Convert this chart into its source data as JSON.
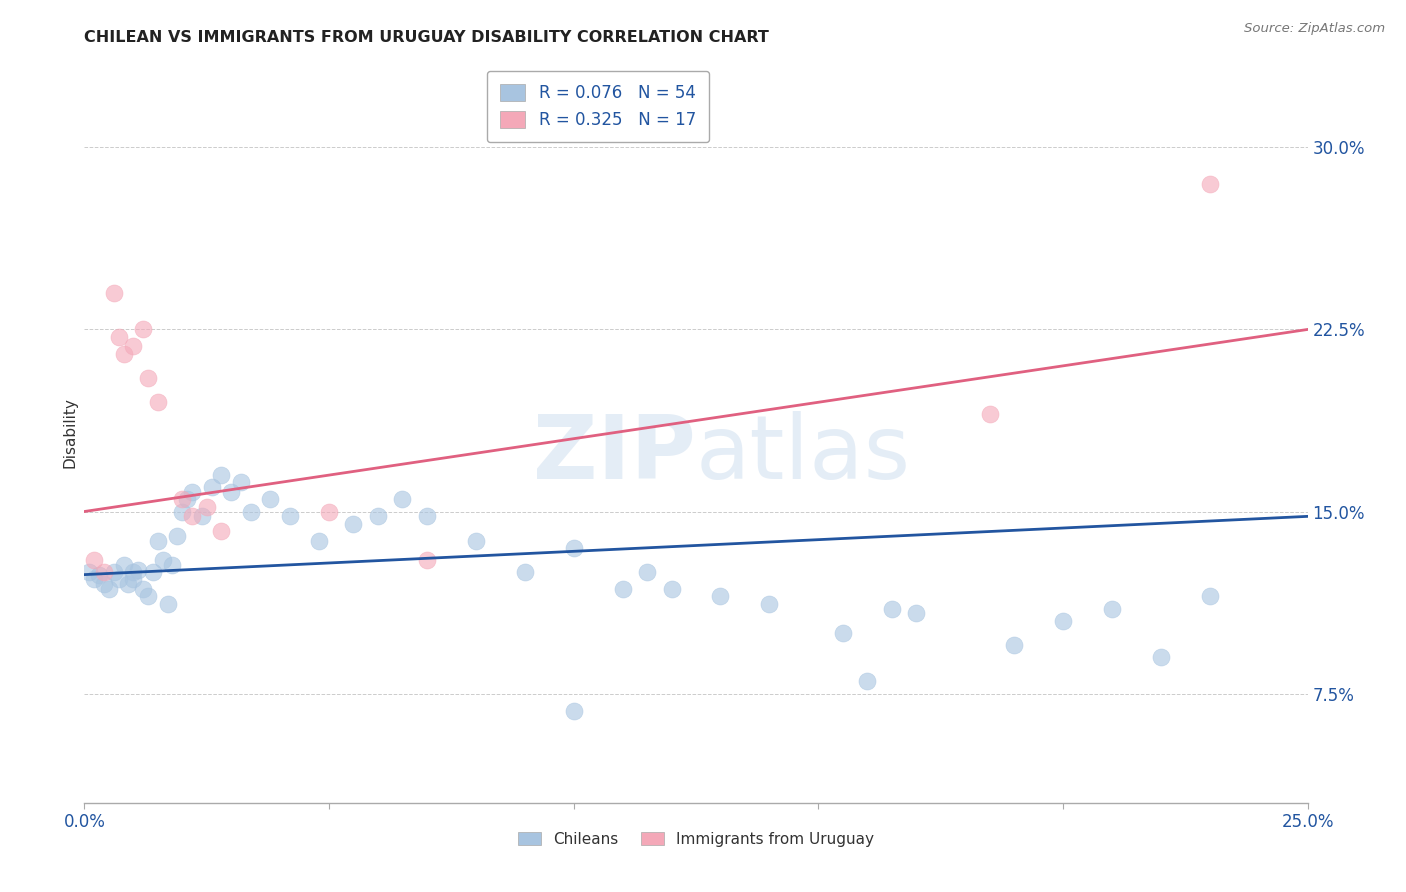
{
  "title": "CHILEAN VS IMMIGRANTS FROM URUGUAY DISABILITY CORRELATION CHART",
  "source": "Source: ZipAtlas.com",
  "ylabel": "Disability",
  "xlim": [
    0.0,
    0.25
  ],
  "ylim": [
    0.03,
    0.335
  ],
  "yticks": [
    0.075,
    0.15,
    0.225,
    0.3
  ],
  "ytick_labels": [
    "7.5%",
    "15.0%",
    "22.5%",
    "30.0%"
  ],
  "xticks": [
    0.0,
    0.05,
    0.1,
    0.15,
    0.2,
    0.25
  ],
  "xtick_labels": [
    "0.0%",
    "",
    "",
    "",
    "",
    "25.0%"
  ],
  "legend_r1": "R = 0.076",
  "legend_n1": "N = 54",
  "legend_r2": "R = 0.325",
  "legend_n2": "N = 17",
  "legend_label1": "Chileans",
  "legend_label2": "Immigrants from Uruguay",
  "blue_color": "#A8C4E0",
  "pink_color": "#F4A8B8",
  "line_blue": "#2255A0",
  "line_pink": "#E06080",
  "blue_x": [
    0.001,
    0.002,
    0.003,
    0.004,
    0.005,
    0.006,
    0.007,
    0.008,
    0.009,
    0.01,
    0.01,
    0.011,
    0.012,
    0.013,
    0.014,
    0.015,
    0.016,
    0.017,
    0.018,
    0.019,
    0.02,
    0.021,
    0.022,
    0.024,
    0.026,
    0.028,
    0.03,
    0.032,
    0.034,
    0.038,
    0.042,
    0.048,
    0.055,
    0.06,
    0.065,
    0.07,
    0.08,
    0.09,
    0.1,
    0.11,
    0.115,
    0.12,
    0.13,
    0.14,
    0.155,
    0.165,
    0.17,
    0.19,
    0.2,
    0.21,
    0.22,
    0.23,
    0.1,
    0.16
  ],
  "blue_y": [
    0.125,
    0.122,
    0.124,
    0.12,
    0.118,
    0.125,
    0.122,
    0.128,
    0.12,
    0.125,
    0.122,
    0.126,
    0.118,
    0.115,
    0.125,
    0.138,
    0.13,
    0.112,
    0.128,
    0.14,
    0.15,
    0.155,
    0.158,
    0.148,
    0.16,
    0.165,
    0.158,
    0.162,
    0.15,
    0.155,
    0.148,
    0.138,
    0.145,
    0.148,
    0.155,
    0.148,
    0.138,
    0.125,
    0.135,
    0.118,
    0.125,
    0.118,
    0.115,
    0.112,
    0.1,
    0.11,
    0.108,
    0.095,
    0.105,
    0.11,
    0.09,
    0.115,
    0.068,
    0.08
  ],
  "pink_x": [
    0.002,
    0.004,
    0.006,
    0.007,
    0.008,
    0.01,
    0.012,
    0.013,
    0.015,
    0.02,
    0.022,
    0.025,
    0.028,
    0.05,
    0.07,
    0.185,
    0.23
  ],
  "pink_y": [
    0.13,
    0.125,
    0.24,
    0.222,
    0.215,
    0.218,
    0.225,
    0.205,
    0.195,
    0.155,
    0.148,
    0.152,
    0.142,
    0.15,
    0.13,
    0.19,
    0.285
  ],
  "blue_line_x": [
    0.0,
    0.25
  ],
  "blue_line_y": [
    0.124,
    0.148
  ],
  "pink_line_x": [
    0.0,
    0.25
  ],
  "pink_line_y": [
    0.15,
    0.225
  ]
}
